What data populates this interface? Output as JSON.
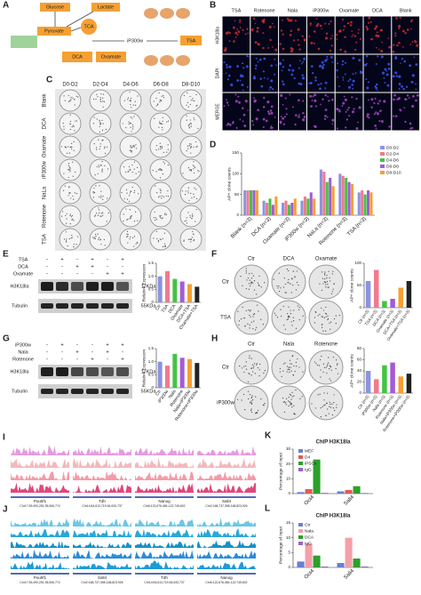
{
  "panels": {
    "letters": [
      "A",
      "B",
      "C",
      "D",
      "E",
      "F",
      "G",
      "H",
      "I",
      "J",
      "K",
      "L"
    ],
    "a": {
      "labels": [
        "Glucose",
        "Pyruvate",
        "Lactate",
        "TCA",
        "DCA",
        "Oxamate",
        "iP300w",
        "TSA"
      ]
    },
    "b": {
      "columns": [
        "TSA",
        "Rotenone",
        "Nala",
        "iP300w",
        "Oxamate",
        "DCA",
        "Blank"
      ],
      "rows": [
        "H3K18la",
        "DAPI",
        "MERGE"
      ]
    },
    "c": {
      "columns": [
        "D0-D2",
        "D2-D4",
        "D4-D6",
        "D6-D8",
        "D8-D10"
      ],
      "rows": [
        "Blank",
        "DCA",
        "Oxamate",
        "iP300w",
        "NaLa",
        "Rotenone",
        "TSA"
      ]
    },
    "e": {
      "treatments": [
        "TSA",
        "DCA",
        "Oxamate"
      ],
      "signs": [
        [
          "-",
          "+",
          "-",
          "+",
          "-",
          "+"
        ],
        [
          "-",
          "-",
          "+",
          "+",
          "-",
          "-"
        ],
        [
          "-",
          "-",
          "-",
          "-",
          "+",
          "+"
        ]
      ],
      "bands": [
        "H3K18la",
        "Tubulin"
      ],
      "sizes": [
        "17KDa",
        "55KDa"
      ]
    },
    "f": {
      "columns": [
        "Ctr",
        "DCA",
        "Oxamate"
      ],
      "rows": [
        "Ctr",
        "TSA"
      ]
    },
    "g": {
      "treatments": [
        "iP300w",
        "Nala",
        "Rotenone"
      ],
      "signs": [
        [
          "-",
          "+",
          "-",
          "-",
          "+",
          "+"
        ],
        [
          "-",
          "-",
          "+",
          "-",
          "+",
          "-"
        ],
        [
          "-",
          "-",
          "-",
          "+",
          "-",
          "+"
        ]
      ],
      "bands": [
        "H3K18la",
        "Tubulin"
      ],
      "sizes": [
        "17KDa",
        "55KDa"
      ]
    },
    "h": {
      "columns": [
        "Ctr",
        "Nala",
        "Rotenone"
      ],
      "rows": [
        "Ctr",
        "iP300w"
      ]
    },
    "i": {
      "genes": [
        "Pou5f1",
        "Tdh",
        "Nanog",
        "Sall4"
      ],
      "coords": [
        "Chr17:35,490,251-35,506,774",
        "Chr14:54,613,719-54,633,737",
        "Chr6:122,676,484-122,745,602",
        "Chr2:168,737,398-168,823,926"
      ]
    },
    "j": {
      "genes": [
        "Pou5f1",
        "Sall4",
        "Tdh",
        "Nanog"
      ],
      "coords": [
        "Chr17:35,490,251-35,506,774",
        "Chr2:168,737,398-168,823,926",
        "Chr14:54,613,719-54,633,737",
        "Chr6:122,676,484-122,745,602"
      ]
    }
  },
  "chart_data": [
    {
      "type": "bar",
      "ylabel": "AP+ clone counts",
      "categories": [
        "Blank (n=3)",
        "DCA (n=3)",
        "Oxamate (n=3)",
        "iP300w (n=3)",
        "NaLa (n=3)",
        "Rotenone (n=3)",
        "TSA (n=3)"
      ],
      "series": [
        {
          "name": "D0-D2",
          "color": "#8b93e0",
          "values": [
            60,
            35,
            30,
            35,
            110,
            100,
            55
          ]
        },
        {
          "name": "D2-D4",
          "color": "#f07a8c",
          "values": [
            60,
            30,
            35,
            45,
            105,
            95,
            60
          ]
        },
        {
          "name": "D4-D6",
          "color": "#43c443",
          "values": [
            60,
            40,
            25,
            40,
            80,
            90,
            50
          ]
        },
        {
          "name": "D6-D8",
          "color": "#a35bd6",
          "values": [
            60,
            25,
            30,
            55,
            90,
            80,
            60
          ]
        },
        {
          "name": "D8-D10",
          "color": "#f5a033",
          "values": [
            60,
            45,
            40,
            40,
            70,
            75,
            55
          ]
        }
      ],
      "ylim": [
        0,
        150
      ],
      "yticks": [
        0,
        50,
        100,
        150
      ],
      "legend": "upper right"
    },
    {
      "type": "bar",
      "ylabel": "Relative Expression",
      "categories": [
        "Ctr",
        "TSA",
        "DCA",
        "Oxamate",
        "DCA+TSA",
        "Oxamate+TSA"
      ],
      "values": [
        1.0,
        1.2,
        0.9,
        0.8,
        0.7,
        0.6
      ],
      "colors": [
        "#8b93e0",
        "#f07a8c",
        "#43c443",
        "#a35bd6",
        "#f5a033",
        "#222222"
      ],
      "ylim": [
        0,
        1.5
      ],
      "yticks": [
        0,
        0.5,
        {
          "value": 1,
          "label": "1.0"
        },
        1.5
      ]
    },
    {
      "type": "bar",
      "ylabel": "AP+ clone counts",
      "categories": [
        "Ctr (n=3)",
        "TSA (n=3)",
        "DCA (n=3)",
        "Oxamate (n=3)",
        "DCA+TSA (n=3)",
        "Oxamate+TSA (n=3)"
      ],
      "values": [
        60,
        85,
        15,
        20,
        45,
        60
      ],
      "colors": [
        "#8b93e0",
        "#f07a8c",
        "#43c443",
        "#a35bd6",
        "#f5a033",
        "#222222"
      ],
      "ylim": [
        0,
        100
      ],
      "yticks": [
        0,
        50,
        100
      ]
    },
    {
      "type": "bar",
      "ylabel": "Relative Expression",
      "categories": [
        "Ctr",
        "iP300w",
        "Nala",
        "Rotenone",
        "Nala+iP300w",
        "Rotenone+iP300w"
      ],
      "values": [
        1.0,
        0.85,
        1.3,
        1.15,
        1.1,
        0.95
      ],
      "colors": [
        "#8b93e0",
        "#f07a8c",
        "#43c443",
        "#a35bd6",
        "#f5a033",
        "#222222"
      ],
      "ylim": [
        0,
        1.5
      ],
      "yticks": [
        0,
        0.5,
        {
          "value": 1,
          "label": "1.0"
        },
        1.5
      ]
    },
    {
      "type": "bar",
      "ylabel": "AP+ clone counts",
      "categories": [
        "Ctr (n=3)",
        "iP300w (n=3)",
        "Nala (n=3)",
        "Rotenone (n=3)",
        "Nala+iP300w (n=3)",
        "Rotenone+iP300w (n=3)"
      ],
      "values": [
        40,
        25,
        50,
        55,
        30,
        35
      ],
      "colors": [
        "#8b93e0",
        "#f07a8c",
        "#43c443",
        "#a35bd6",
        "#f5a033",
        "#222222"
      ],
      "ylim": [
        0,
        80
      ],
      "yticks": [
        0,
        20,
        40,
        60,
        80
      ]
    },
    {
      "type": "bar",
      "title": "ChIP H3K18la",
      "ylabel": "Percentage of Input",
      "categories": [
        "Oct4",
        "Sall4"
      ],
      "series": [
        {
          "name": "MEF",
          "color": "#6a7fd0",
          "values": [
            1.0,
            1.5
          ]
        },
        {
          "name": "D4",
          "color": "#e05a5a",
          "values": [
            3,
            2.5
          ]
        },
        {
          "name": "iPSCs",
          "color": "#2ca02c",
          "values": [
            23,
            5
          ]
        },
        {
          "name": "IgG",
          "color": "#9467bd",
          "values": [
            0.5,
            0.4
          ]
        }
      ],
      "ylim": [
        0,
        30
      ],
      "yticks": [
        0,
        10,
        20,
        30
      ],
      "legend": "upper left"
    },
    {
      "type": "bar",
      "title": "ChIP H3K18la",
      "ylabel": "Percentage of Input",
      "categories": [
        "Oct4",
        "Sall4"
      ],
      "series": [
        {
          "name": "Ctr",
          "color": "#6a7fd0",
          "values": [
            2,
            1.5
          ]
        },
        {
          "name": "Nala",
          "color": "#f4a0a8",
          "values": [
            8,
            10
          ]
        },
        {
          "name": "DCA",
          "color": "#2ca02c",
          "values": [
            4,
            3
          ]
        },
        {
          "name": "IgG",
          "color": "#9467bd",
          "values": [
            0.3,
            0.3
          ]
        }
      ],
      "ylim": [
        0,
        15
      ],
      "yticks": [
        0,
        5,
        10,
        15
      ],
      "legend": "upper left"
    }
  ]
}
